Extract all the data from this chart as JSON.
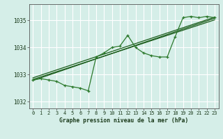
{
  "title": "Graphe pression niveau de la mer (hPa)",
  "bg_color": "#d5eee8",
  "grid_color": "#ffffff",
  "line_color": "#1a5c1a",
  "line_color2": "#2d7a2d",
  "xlim": [
    -0.5,
    23.5
  ],
  "ylim": [
    1031.75,
    1035.6
  ],
  "yticks": [
    1032,
    1033,
    1034,
    1035
  ],
  "xticks": [
    0,
    1,
    2,
    3,
    4,
    5,
    6,
    7,
    8,
    9,
    10,
    11,
    12,
    13,
    14,
    15,
    16,
    17,
    18,
    19,
    20,
    21,
    22,
    23
  ],
  "main_series": [
    1032.8,
    1032.85,
    1032.8,
    1032.75,
    1032.6,
    1032.55,
    1032.5,
    1032.4,
    1033.65,
    1033.8,
    1034.0,
    1034.05,
    1034.45,
    1034.0,
    1033.8,
    1033.7,
    1033.65,
    1033.65,
    1034.4,
    1035.1,
    1035.15,
    1035.1,
    1035.15,
    1035.1
  ],
  "trend1_x": [
    0,
    23
  ],
  "trend1_y": [
    1032.82,
    1035.02
  ],
  "trend2_x": [
    0,
    23
  ],
  "trend2_y": [
    1032.88,
    1035.12
  ],
  "trend3_x": [
    0,
    23
  ],
  "trend3_y": [
    1032.78,
    1035.08
  ]
}
